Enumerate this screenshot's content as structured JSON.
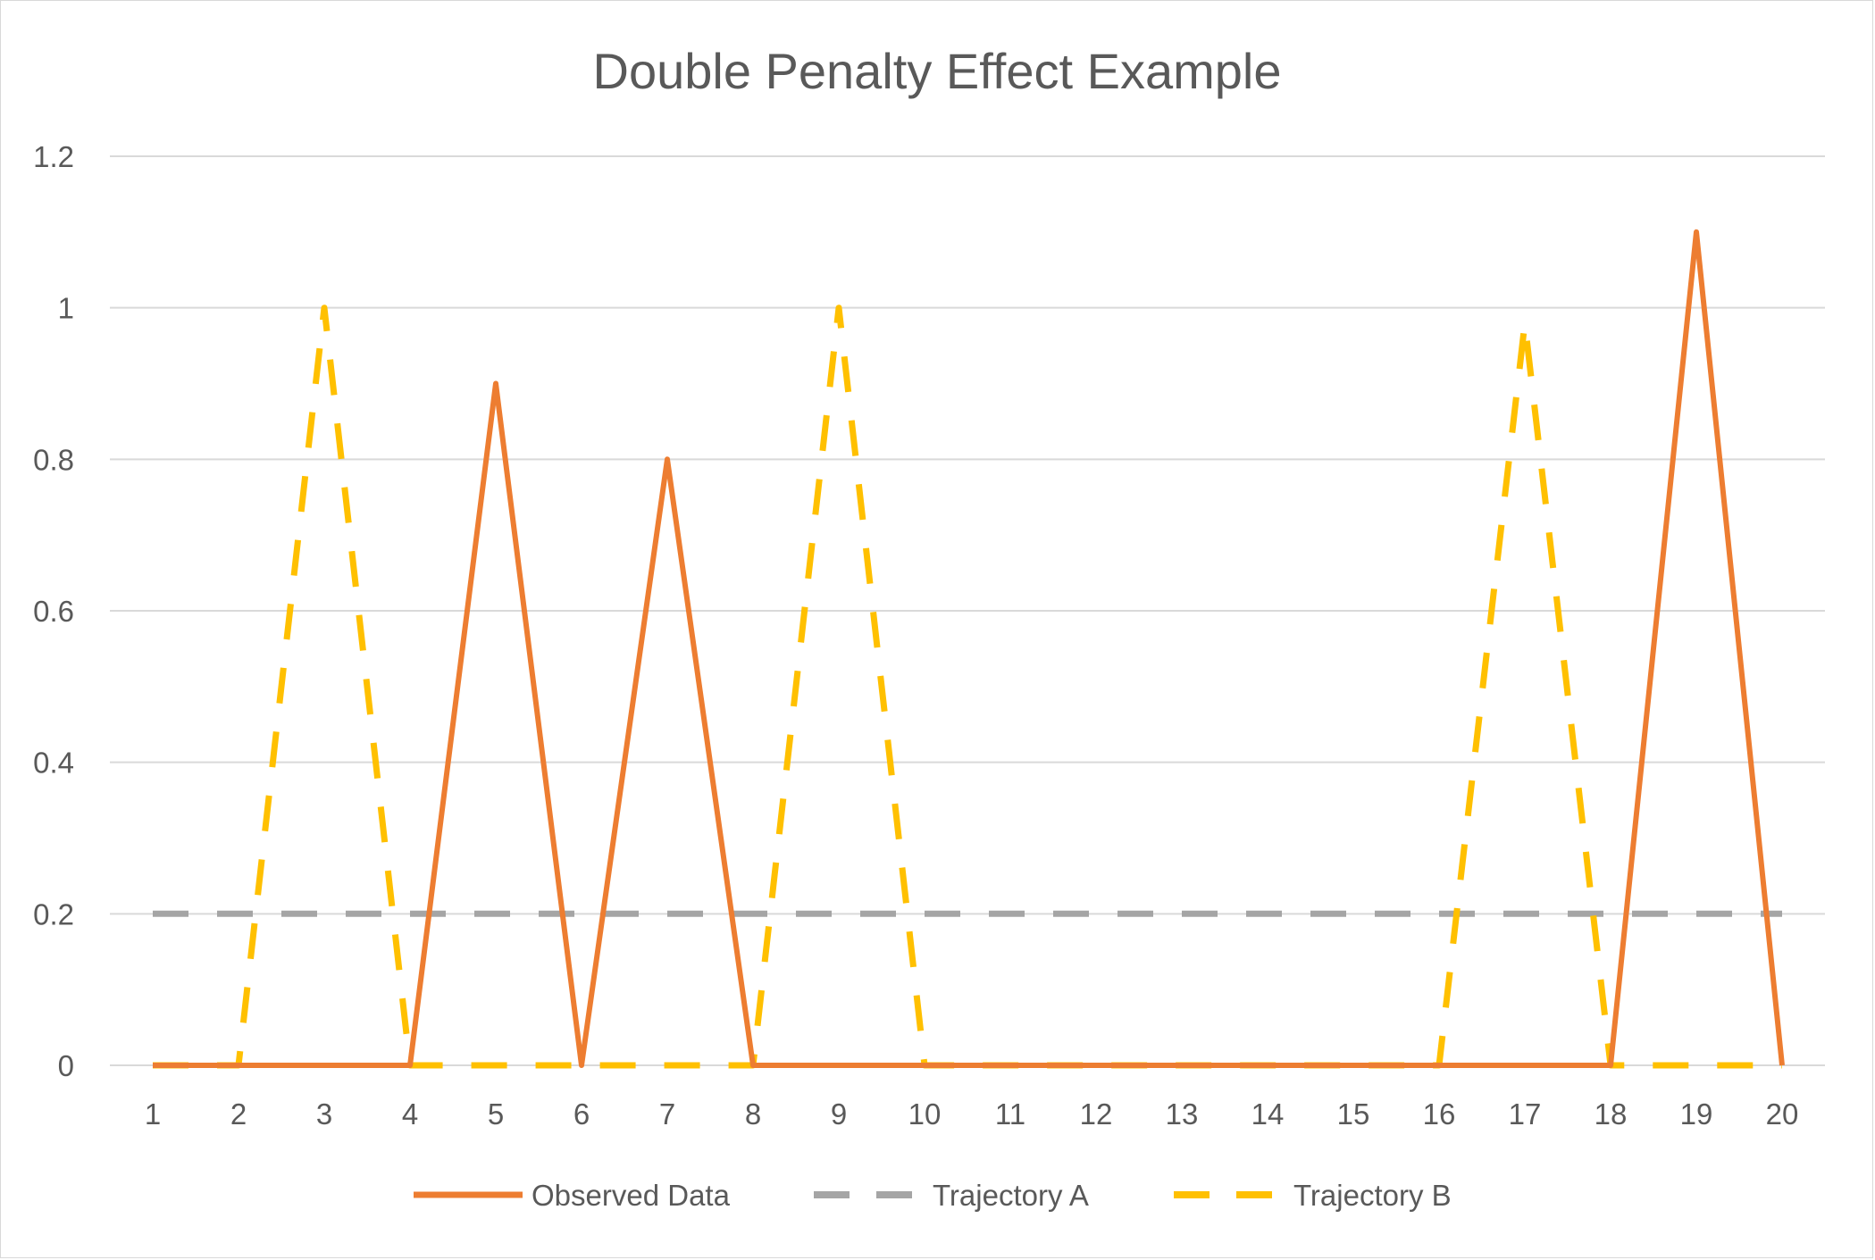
{
  "chart_data": {
    "type": "line",
    "title": "Double Penalty Effect Example",
    "xlabel": "",
    "ylabel": "",
    "categories": [
      "1",
      "2",
      "3",
      "4",
      "5",
      "6",
      "7",
      "8",
      "9",
      "10",
      "11",
      "12",
      "13",
      "14",
      "15",
      "16",
      "17",
      "18",
      "19",
      "20"
    ],
    "ylim": [
      0,
      1.2
    ],
    "y_ticks": [
      "0",
      "0.2",
      "0.4",
      "0.6",
      "0.8",
      "1",
      "1.2"
    ],
    "y_tick_values": [
      0,
      0.2,
      0.4,
      0.6,
      0.8,
      1.0,
      1.2
    ],
    "grid": "horizontal",
    "legend_position": "bottom",
    "series": [
      {
        "name": "Observed Data",
        "color": "#ed7d31",
        "style": "solid",
        "values": [
          0,
          0,
          0,
          0,
          0.9,
          0,
          0.8,
          0,
          0,
          0,
          0,
          0,
          0,
          0,
          0,
          0,
          0,
          0,
          1.1,
          0
        ]
      },
      {
        "name": "Trajectory A",
        "color": "#a5a5a5",
        "style": "dashed",
        "values": [
          0.2,
          0.2,
          0.2,
          0.2,
          0.2,
          0.2,
          0.2,
          0.2,
          0.2,
          0.2,
          0.2,
          0.2,
          0.2,
          0.2,
          0.2,
          0.2,
          0.2,
          0.2,
          0.2,
          0.2
        ]
      },
      {
        "name": "Trajectory B",
        "color": "#ffc000",
        "style": "dashed",
        "values": [
          0,
          0,
          1,
          0,
          0,
          0,
          0,
          0,
          1,
          0,
          0,
          0,
          0,
          0,
          0,
          0,
          0.98,
          0,
          0,
          0
        ]
      }
    ]
  }
}
